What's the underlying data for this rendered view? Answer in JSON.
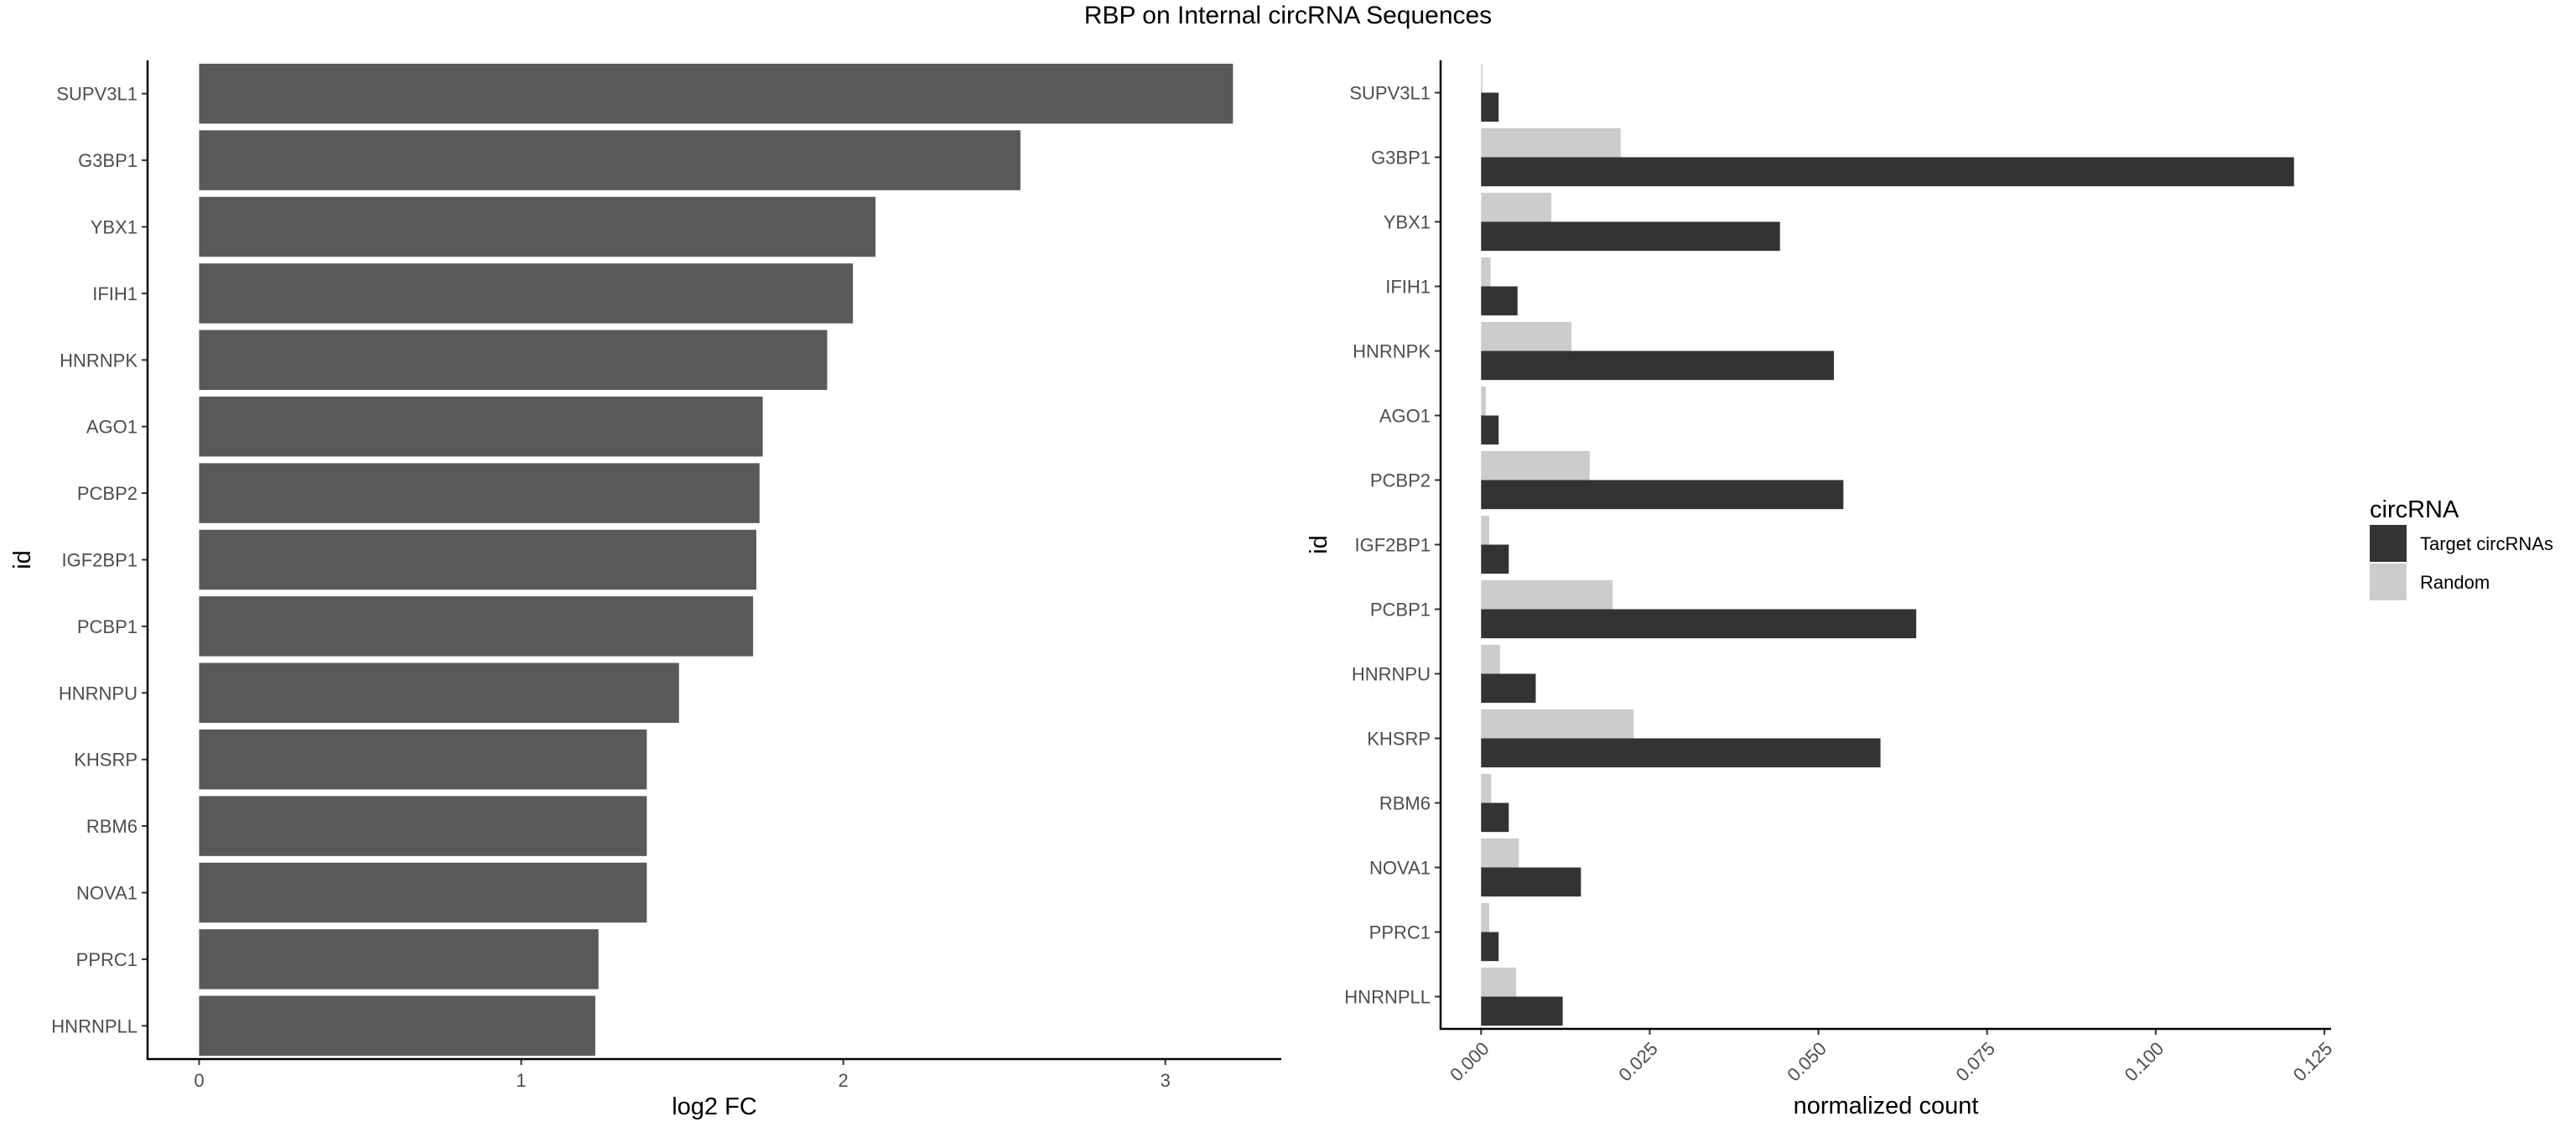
{
  "title": "RBP on Internal circRNA Sequences",
  "chart_data": [
    {
      "type": "bar",
      "orientation": "horizontal",
      "categories": [
        "SUPV3L1",
        "G3BP1",
        "YBX1",
        "IFIH1",
        "HNRNPK",
        "AGO1",
        "PCBP2",
        "IGF2BP1",
        "PCBP1",
        "HNRNPU",
        "KHSRP",
        "RBM6",
        "NOVA1",
        "PPRC1",
        "HNRNPLL"
      ],
      "values": [
        3.21,
        2.55,
        2.1,
        2.03,
        1.95,
        1.75,
        1.74,
        1.73,
        1.72,
        1.49,
        1.39,
        1.39,
        1.39,
        1.24,
        1.23
      ],
      "xlabel": "log2 FC",
      "ylabel": "id",
      "xlim": [
        -0.16,
        3.36
      ],
      "xticks": [
        "0",
        "1",
        "2",
        "3"
      ],
      "bar_color": "#595959"
    },
    {
      "type": "bar",
      "orientation": "horizontal",
      "categories": [
        "SUPV3L1",
        "G3BP1",
        "YBX1",
        "IFIH1",
        "HNRNPK",
        "AGO1",
        "PCBP2",
        "IGF2BP1",
        "PCBP1",
        "HNRNPU",
        "KHSRP",
        "RBM6",
        "NOVA1",
        "PPRC1",
        "HNRNPLL"
      ],
      "series": [
        {
          "name": "Target circRNAs",
          "color": "#333333",
          "values": [
            0.0026,
            0.1205,
            0.0443,
            0.0054,
            0.0523,
            0.0026,
            0.0537,
            0.0041,
            0.0645,
            0.0081,
            0.0592,
            0.0041,
            0.0148,
            0.0026,
            0.0121
          ]
        },
        {
          "name": "Random",
          "color": "#cccccc",
          "values": [
            0.0002,
            0.0207,
            0.0104,
            0.0014,
            0.0134,
            0.0007,
            0.0161,
            0.0012,
            0.0195,
            0.0028,
            0.0226,
            0.0015,
            0.0056,
            0.0012,
            0.0052
          ]
        }
      ],
      "xlabel": "normalized count",
      "ylabel": "id",
      "xlim": [
        -0.006,
        0.126
      ],
      "xticks": [
        "0.000",
        "0.025",
        "0.050",
        "0.075",
        "0.100",
        "0.125"
      ],
      "legend_title": "circRNA",
      "legend_position": "right"
    }
  ]
}
